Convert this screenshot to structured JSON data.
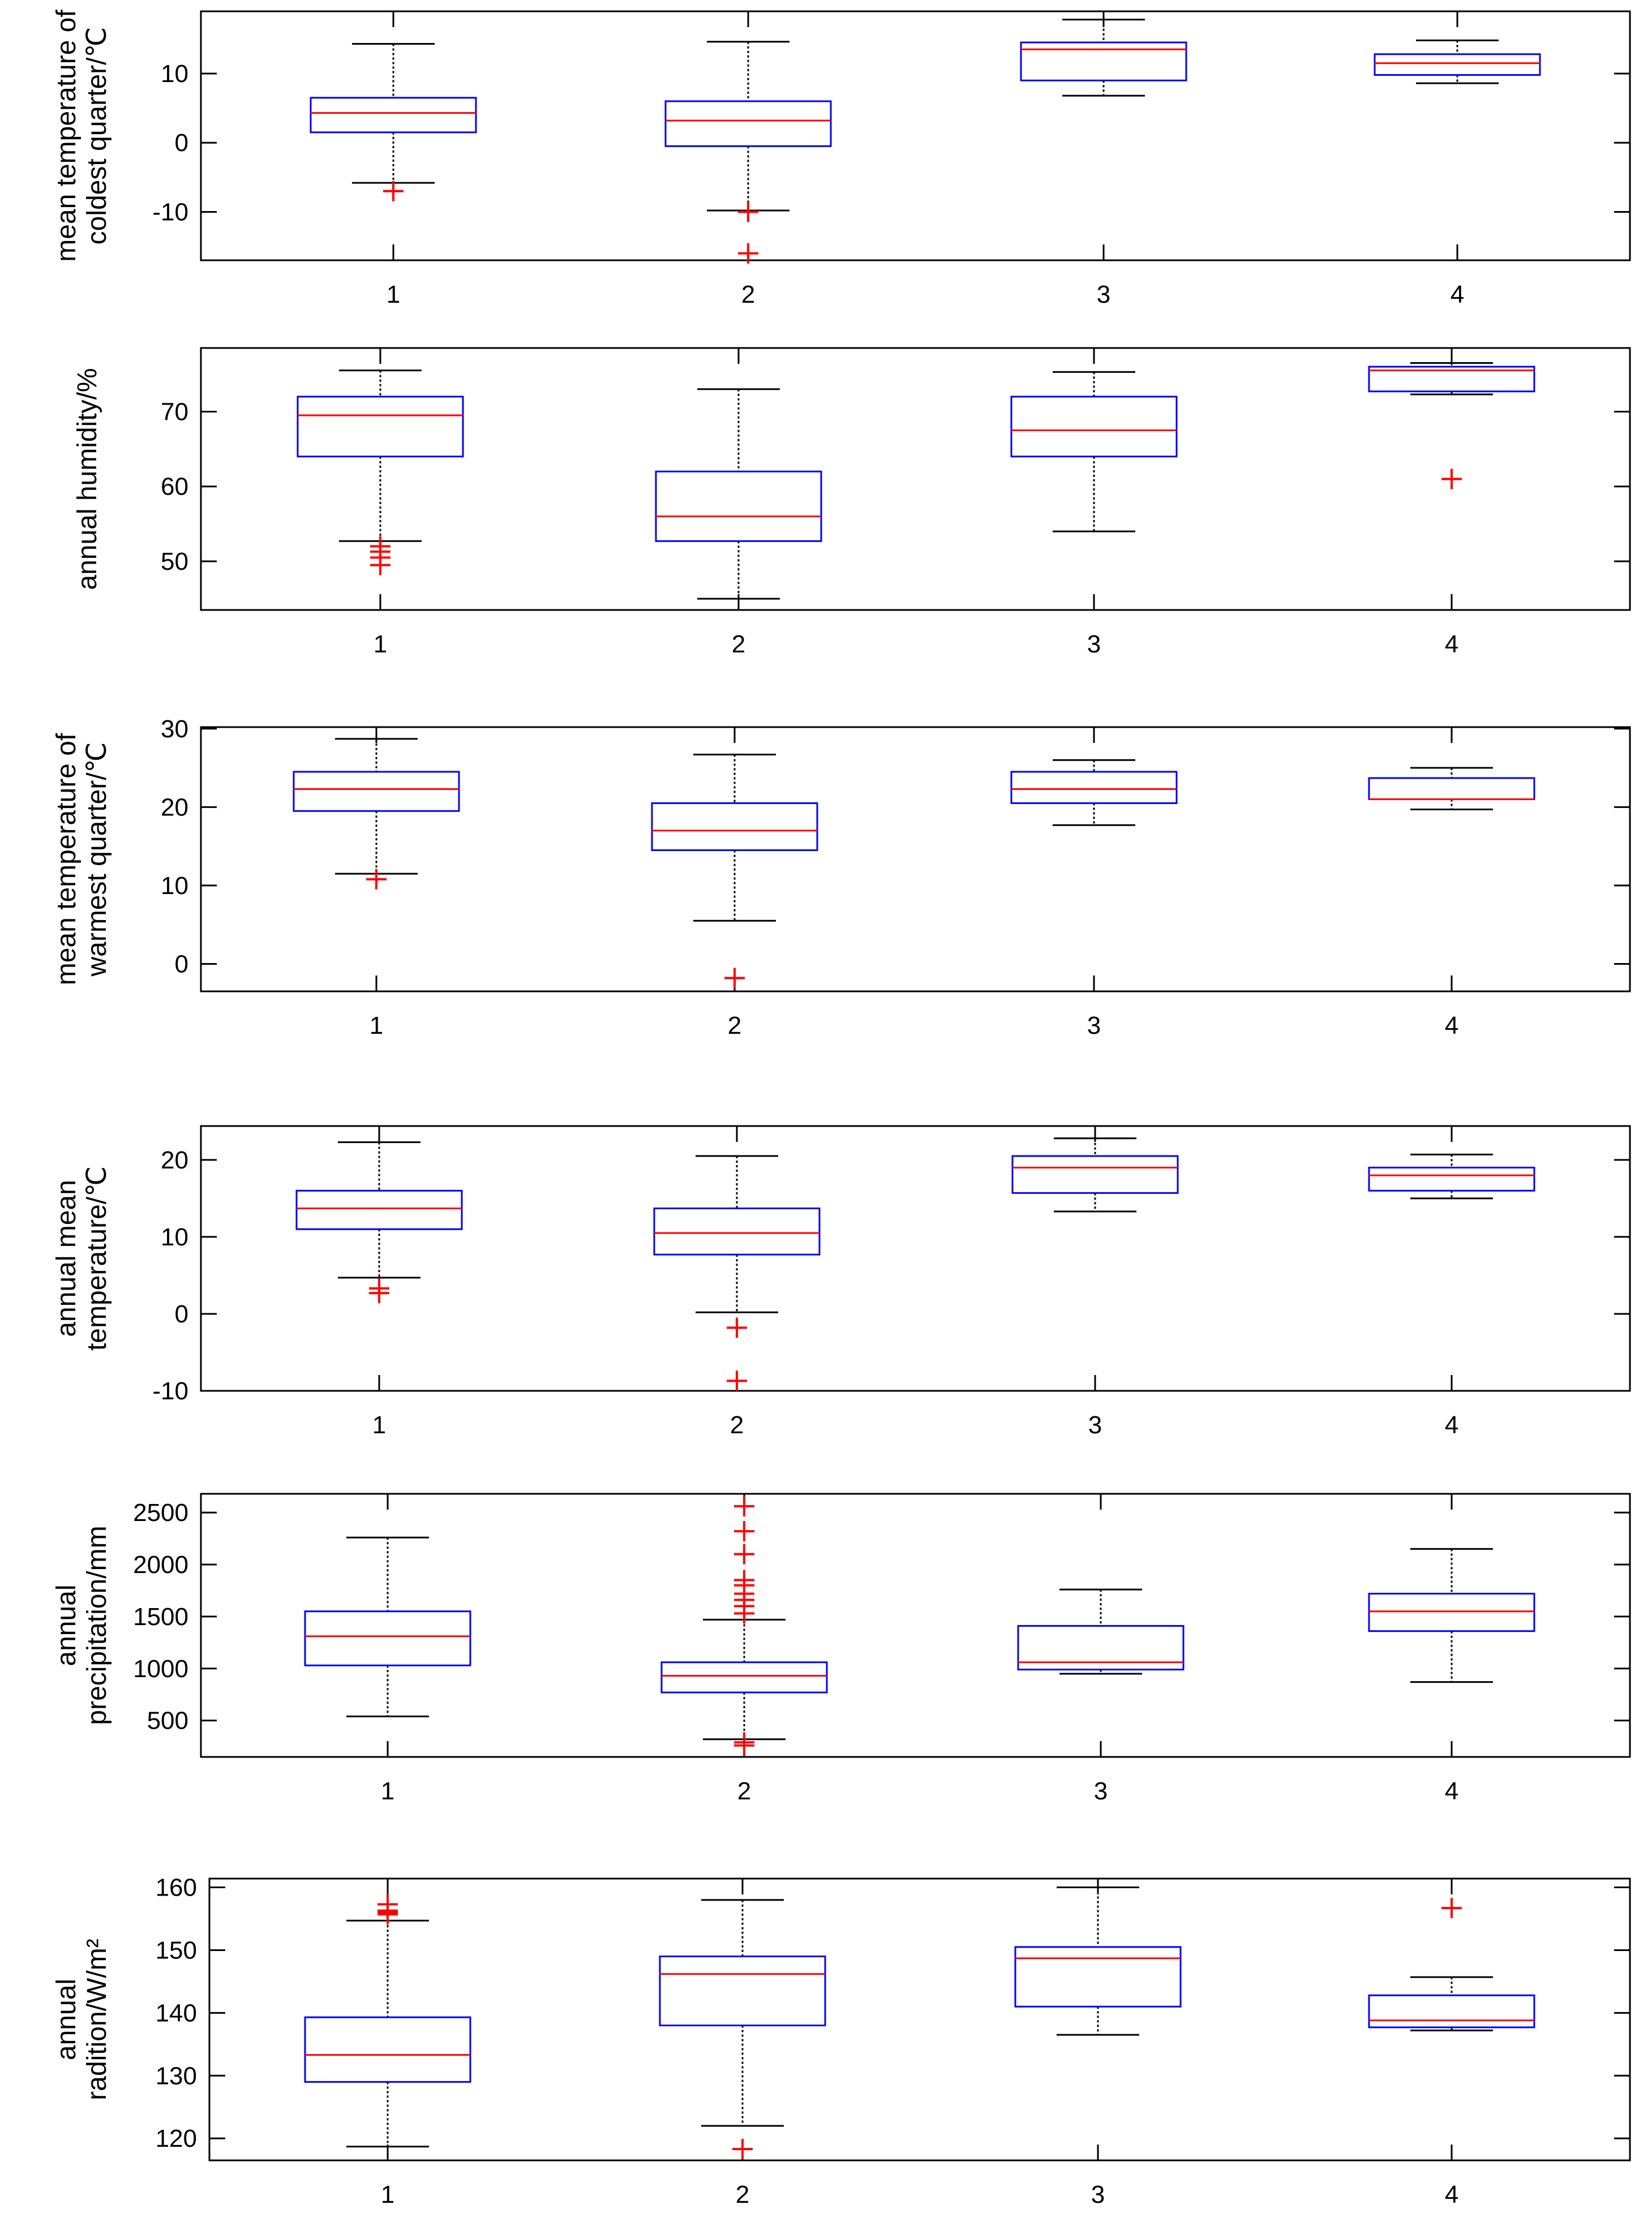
{
  "chart_data": [
    {
      "type": "box",
      "ylabel": [
        "mean temperature of",
        "coldest quarter/℃"
      ],
      "categories": [
        "1",
        "2",
        "3",
        "4"
      ],
      "ylim": [
        -17,
        19
      ],
      "yticks": [
        -10,
        0,
        10
      ],
      "ytick_labels": [
        "-10",
        "0",
        "10"
      ],
      "boxes": [
        {
          "low": -5.8,
          "q1": 1.5,
          "median": 4.3,
          "q3": 6.5,
          "high": 14.3,
          "outliers": [
            -7
          ]
        },
        {
          "low": -9.8,
          "q1": -0.5,
          "median": 3.2,
          "q3": 6.0,
          "high": 14.6,
          "outliers": [
            -10,
            -16
          ]
        },
        {
          "low": 6.8,
          "q1": 9.0,
          "median": 13.5,
          "q3": 14.5,
          "high": 17.8,
          "outliers": []
        },
        {
          "low": 8.6,
          "q1": 9.8,
          "median": 11.5,
          "q3": 12.8,
          "high": 14.8,
          "outliers": []
        }
      ]
    },
    {
      "type": "box",
      "ylabel": [
        "annual humidity/%"
      ],
      "categories": [
        "1",
        "2",
        "3",
        "4"
      ],
      "ylim": [
        43.5,
        78.5
      ],
      "yticks": [
        50,
        60,
        70
      ],
      "ytick_labels": [
        "50",
        "60",
        "70"
      ],
      "boxes": [
        {
          "low": 52.7,
          "q1": 64.0,
          "median": 69.5,
          "q3": 72.0,
          "high": 75.5,
          "outliers": [
            49.5,
            50.5,
            51.3,
            52.0
          ]
        },
        {
          "low": 45.0,
          "q1": 52.7,
          "median": 56.0,
          "q3": 62.0,
          "high": 73.0,
          "outliers": []
        },
        {
          "low": 54.0,
          "q1": 64.0,
          "median": 67.5,
          "q3": 72.0,
          "high": 75.3,
          "outliers": []
        },
        {
          "low": 72.3,
          "q1": 72.7,
          "median": 75.5,
          "q3": 76.0,
          "high": 76.5,
          "outliers": [
            61.0
          ]
        }
      ]
    },
    {
      "type": "box",
      "ylabel": [
        "mean temperature of",
        "warmest quarter/℃"
      ],
      "categories": [
        "1",
        "2",
        "3",
        "4"
      ],
      "ylim": [
        -3.5,
        30.2
      ],
      "yticks": [
        0,
        10,
        20,
        30
      ],
      "ytick_labels": [
        "0",
        "10",
        "20",
        "30"
      ],
      "boxes": [
        {
          "low": 11.5,
          "q1": 19.5,
          "median": 22.3,
          "q3": 24.5,
          "high": 28.7,
          "outliers": [
            10.8
          ]
        },
        {
          "low": 5.5,
          "q1": 14.5,
          "median": 17.0,
          "q3": 20.5,
          "high": 26.7,
          "outliers": [
            -1.8
          ]
        },
        {
          "low": 17.7,
          "q1": 20.5,
          "median": 22.3,
          "q3": 24.5,
          "high": 26.0,
          "outliers": []
        },
        {
          "low": 19.7,
          "q1": 21.0,
          "median": 21.0,
          "q3": 23.7,
          "high": 25.0,
          "outliers": []
        }
      ]
    },
    {
      "type": "box",
      "ylabel": [
        "annual mean",
        "temperature/℃"
      ],
      "categories": [
        "1",
        "2",
        "3",
        "4"
      ],
      "ylim": [
        -10,
        24.4
      ],
      "yticks": [
        -10,
        0,
        10,
        20
      ],
      "ytick_labels": [
        "-10",
        "0",
        "10",
        "20"
      ],
      "boxes": [
        {
          "low": 4.7,
          "q1": 11.0,
          "median": 13.7,
          "q3": 16.0,
          "high": 22.3,
          "outliers": [
            2.7,
            3.3
          ]
        },
        {
          "low": 0.2,
          "q1": 7.7,
          "median": 10.5,
          "q3": 13.7,
          "high": 20.5,
          "outliers": [
            -1.8,
            -8.7
          ]
        },
        {
          "low": 13.3,
          "q1": 15.7,
          "median": 19.0,
          "q3": 20.5,
          "high": 22.8,
          "outliers": []
        },
        {
          "low": 15.0,
          "q1": 16.0,
          "median": 18.0,
          "q3": 19.0,
          "high": 20.7,
          "outliers": []
        }
      ]
    },
    {
      "type": "box",
      "ylabel": [
        "annual",
        "precipitation/mm"
      ],
      "categories": [
        "1",
        "2",
        "3",
        "4"
      ],
      "ylim": [
        150,
        2680
      ],
      "yticks": [
        500,
        1000,
        1500,
        2000,
        2500
      ],
      "ytick_labels": [
        "500",
        "1000",
        "1500",
        "2000",
        "2500"
      ],
      "boxes": [
        {
          "low": 540,
          "q1": 1030,
          "median": 1310,
          "q3": 1550,
          "high": 2260,
          "outliers": []
        },
        {
          "low": 320,
          "q1": 770,
          "median": 930,
          "q3": 1060,
          "high": 1470,
          "outliers": [
            260,
            290,
            1530,
            1600,
            1660,
            1720,
            1800,
            1850,
            2100,
            2320,
            2560
          ]
        },
        {
          "low": 950,
          "q1": 990,
          "median": 1060,
          "q3": 1410,
          "high": 1760,
          "outliers": []
        },
        {
          "low": 870,
          "q1": 1360,
          "median": 1550,
          "q3": 1720,
          "high": 2150,
          "outliers": []
        }
      ]
    },
    {
      "type": "box",
      "ylabel": [
        "annual",
        "radition/W/m²"
      ],
      "categories": [
        "1",
        "2",
        "3",
        "4"
      ],
      "ylim": [
        116.5,
        161.4
      ],
      "yticks": [
        120,
        130,
        140,
        150,
        160
      ],
      "ytick_labels": [
        "120",
        "130",
        "140",
        "150",
        "160"
      ],
      "boxes": [
        {
          "low": 118.7,
          "q1": 129.0,
          "median": 133.3,
          "q3": 139.3,
          "high": 154.7,
          "outliers": [
            155.7,
            156.0,
            156.3,
            157.3
          ]
        },
        {
          "low": 122.0,
          "q1": 138.0,
          "median": 146.2,
          "q3": 149.0,
          "high": 158.0,
          "outliers": [
            118.3
          ]
        },
        {
          "low": 136.5,
          "q1": 141.0,
          "median": 148.7,
          "q3": 150.5,
          "high": 160.0,
          "outliers": []
        },
        {
          "low": 137.2,
          "q1": 137.7,
          "median": 138.8,
          "q3": 142.8,
          "high": 145.7,
          "outliers": [
            156.7
          ]
        }
      ]
    }
  ]
}
